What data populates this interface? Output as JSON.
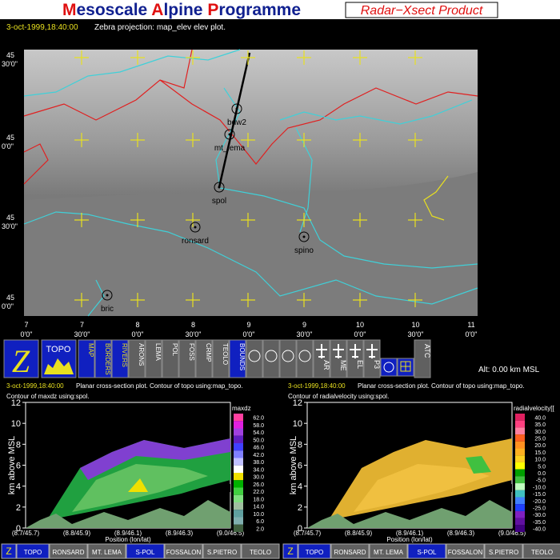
{
  "header": {
    "title_parts": [
      "M",
      "esoscale ",
      "A",
      "lpine ",
      "P",
      "rogramme"
    ],
    "product": "Radar−Xsect Product"
  },
  "info": {
    "datetime": "3-oct-1999,18:40:00",
    "description": "Zebra projection: map_elev elev plot."
  },
  "map": {
    "lat_labels": [
      {
        "deg": "45",
        "min": "30'0\""
      },
      {
        "deg": "45",
        "min": "0'0\""
      },
      {
        "deg": "45",
        "min": "30'0\""
      },
      {
        "deg": "45",
        "min": "0'0\""
      }
    ],
    "lon_labels": [
      {
        "deg": "7",
        "min": "0'0\""
      },
      {
        "deg": "7",
        "min": "30'0\""
      },
      {
        "deg": "8",
        "min": "0'0\""
      },
      {
        "deg": "8",
        "min": "30'0\""
      },
      {
        "deg": "9",
        "min": "0'0\""
      },
      {
        "deg": "9",
        "min": "30'0\""
      },
      {
        "deg": "10",
        "min": "0'0\""
      },
      {
        "deg": "10",
        "min": "30'0\""
      },
      {
        "deg": "11",
        "min": "0'0\""
      }
    ],
    "stations": [
      "bdw2",
      "mt_lema",
      "spol",
      "ronsard",
      "spino",
      "bric"
    ]
  },
  "toolbar": {
    "main": "Z",
    "topo": "TOPO",
    "layers": [
      "MAP",
      "BORDERS",
      "RIVERS"
    ],
    "radars": [
      "ARONS",
      "LEMA",
      "POL",
      "FOSS",
      "CRMP",
      "TEOLO",
      "BOUNDS"
    ],
    "aircraft": [
      "AR",
      "ME",
      "EL",
      "P3"
    ],
    "atc": "ATC",
    "altitude": "Alt: 0.00 km MSL"
  },
  "panels": [
    {
      "datetime": "3-oct-1999,18:40:00",
      "line1": "Planar cross-section plot. Contour of topo using:map_topo.",
      "line2": "Contour of maxdz using:spol.",
      "field": "maxdz",
      "y_axis_label": "km above MSL",
      "y_ticks": [
        "0",
        "2",
        "4",
        "6",
        "8",
        "10",
        "12"
      ],
      "x_axis_label": "Position (lon/lat)",
      "x_ticks": [
        "(8.7/45.7)",
        "(8.8/45.9)",
        "(8.9/46.1)",
        "(8.9/46.3)",
        "(9.0/46.5)"
      ],
      "colorbar": [
        "62.0",
        "58.0",
        "54.0",
        "50.0",
        "46.0",
        "42.0",
        "38.0",
        "34.0",
        "30.0",
        "26.0",
        "22.0",
        "18.0",
        "14.0",
        "10.0",
        "6.0",
        "2.0"
      ],
      "buttons": [
        "Z",
        "TOPO",
        "RONSARD",
        "MT. LEMA",
        "S-POL",
        "FOSSALON",
        "S.PIETRO",
        "TEOLO"
      ]
    },
    {
      "datetime": "3-oct-1999,18:40:00",
      "line1": "Planar cross-section plot. Contour of topo using:map_topo.",
      "line2": "Contour of radialvelocity using:spol.",
      "field": "radialvelocity[[",
      "y_axis_label": "km above MSL",
      "y_ticks": [
        "0",
        "2",
        "4",
        "6",
        "8",
        "10",
        "12"
      ],
      "x_axis_label": "Position (lon/lat)",
      "x_ticks": [
        "(8.7/45.7)",
        "(8.8/45.9)",
        "(8.9/46.1)",
        "(8.9/46.3)",
        "(9.0/46.5)"
      ],
      "colorbar": [
        "40.0",
        "35.0",
        "30.0",
        "25.0",
        "20.0",
        "15.0",
        "10.0",
        "5.0",
        "0.0",
        "-5.0",
        "-10.0",
        "-15.0",
        "-20.0",
        "-25.0",
        "-30.0",
        "-35.0",
        "-40.0"
      ],
      "buttons": [
        "Z",
        "TOPO",
        "RONSARD",
        "MT. LEMA",
        "S-POL",
        "FOSSALON",
        "S.PIETRO",
        "TEOLO"
      ]
    }
  ]
}
